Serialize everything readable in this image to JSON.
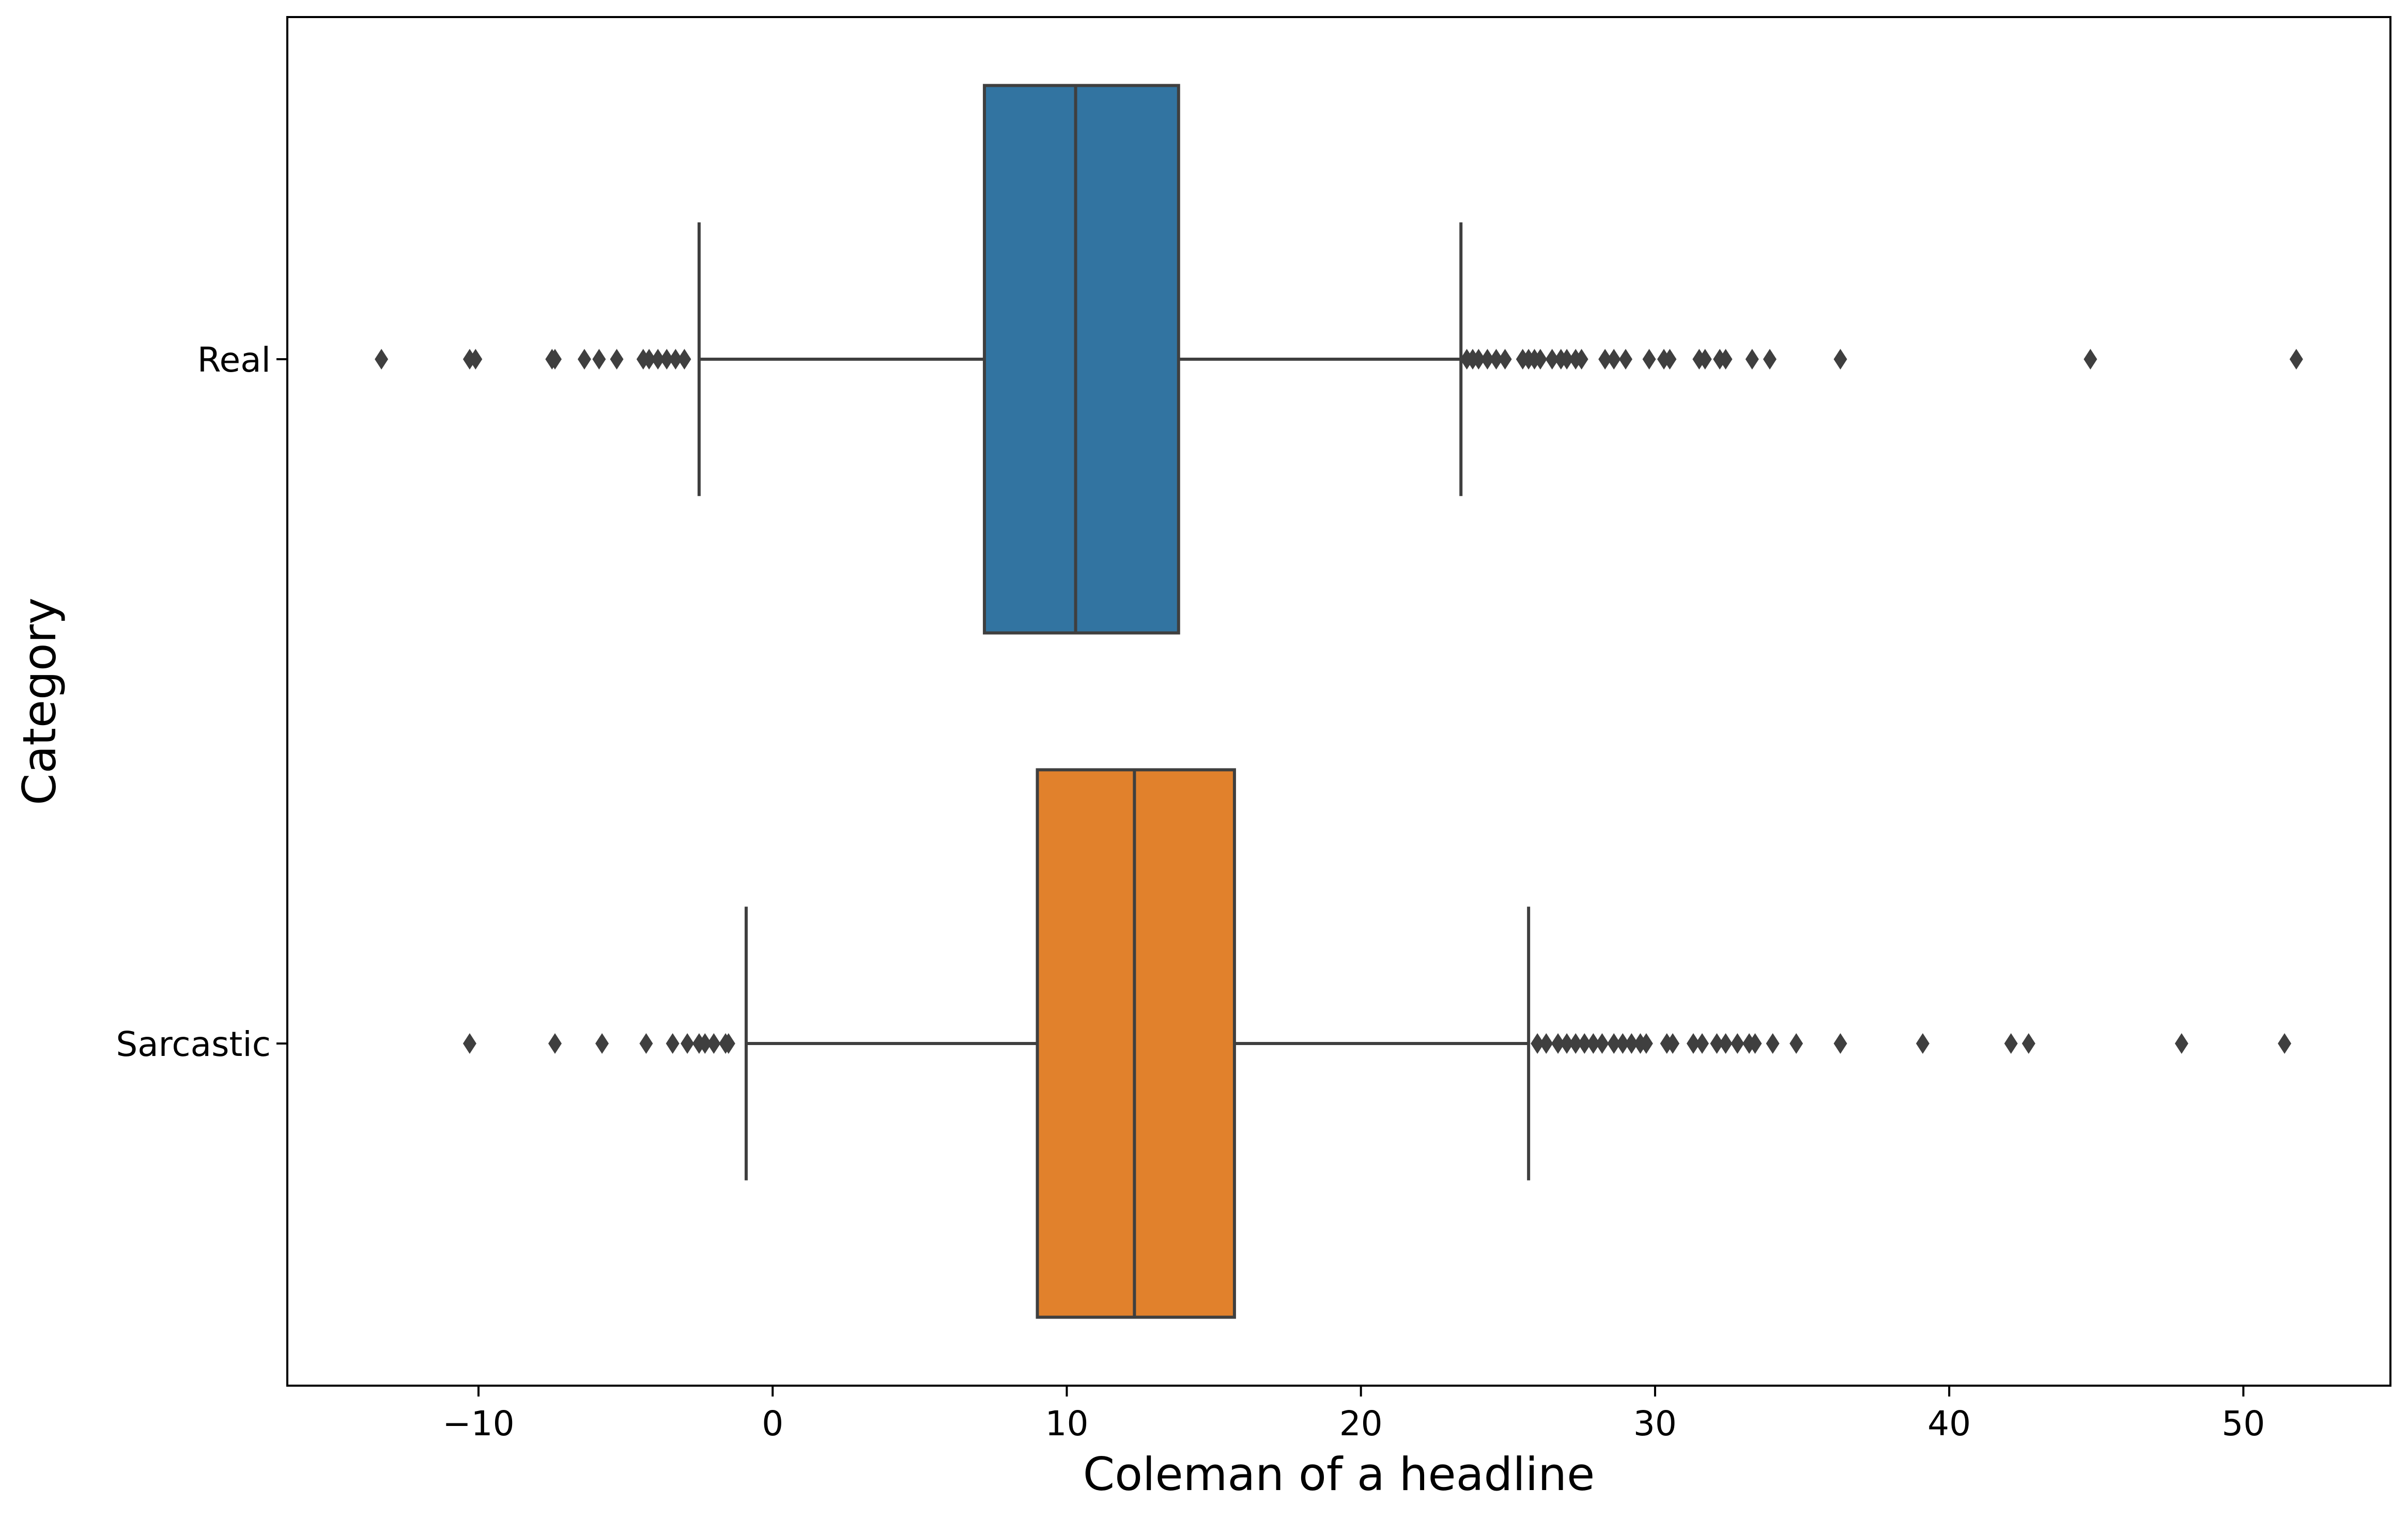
{
  "chart_data": {
    "type": "boxplot",
    "orientation": "horizontal",
    "title": "",
    "xlabel": "Coleman of a headline",
    "ylabel": "Category",
    "xlim": [
      -16.5,
      55.0
    ],
    "xticks": [
      -10,
      0,
      10,
      20,
      30,
      40,
      50
    ],
    "xtick_labels": [
      "−10",
      "0",
      "10",
      "20",
      "30",
      "40",
      "50"
    ],
    "grid": false,
    "legend": "none",
    "series": [
      {
        "name": "Real",
        "color": "#3274a1",
        "whisker_low": -2.5,
        "q1": 7.2,
        "median": 10.3,
        "q3": 13.8,
        "whisker_high": 23.4,
        "outliers": [
          -13.3,
          -10.3,
          -10.1,
          -7.5,
          -7.4,
          -6.4,
          -5.9,
          -5.3,
          -4.4,
          -4.2,
          -3.9,
          -3.6,
          -3.3,
          -3.0,
          23.6,
          23.8,
          24.0,
          24.3,
          24.6,
          24.9,
          25.5,
          25.7,
          25.9,
          26.1,
          26.5,
          26.8,
          27.0,
          27.3,
          27.5,
          28.3,
          28.6,
          29.0,
          29.8,
          30.3,
          30.5,
          31.5,
          31.7,
          32.2,
          32.4,
          33.3,
          33.9,
          36.3,
          44.8,
          51.8
        ]
      },
      {
        "name": "Sarcastic",
        "color": "#e1812c",
        "whisker_low": -0.9,
        "q1": 9.0,
        "median": 12.3,
        "q3": 15.7,
        "whisker_high": 25.7,
        "outliers": [
          -10.3,
          -7.4,
          -5.8,
          -4.3,
          -3.4,
          -2.9,
          -2.5,
          -2.3,
          -2.0,
          -1.6,
          -1.5,
          26.0,
          26.3,
          26.7,
          27.0,
          27.3,
          27.6,
          27.9,
          28.2,
          28.6,
          28.9,
          29.2,
          29.5,
          29.7,
          30.4,
          30.6,
          31.3,
          31.6,
          32.1,
          32.4,
          32.8,
          33.2,
          33.4,
          34.0,
          34.8,
          36.3,
          39.1,
          42.1,
          42.7,
          47.9,
          51.4
        ]
      }
    ]
  }
}
